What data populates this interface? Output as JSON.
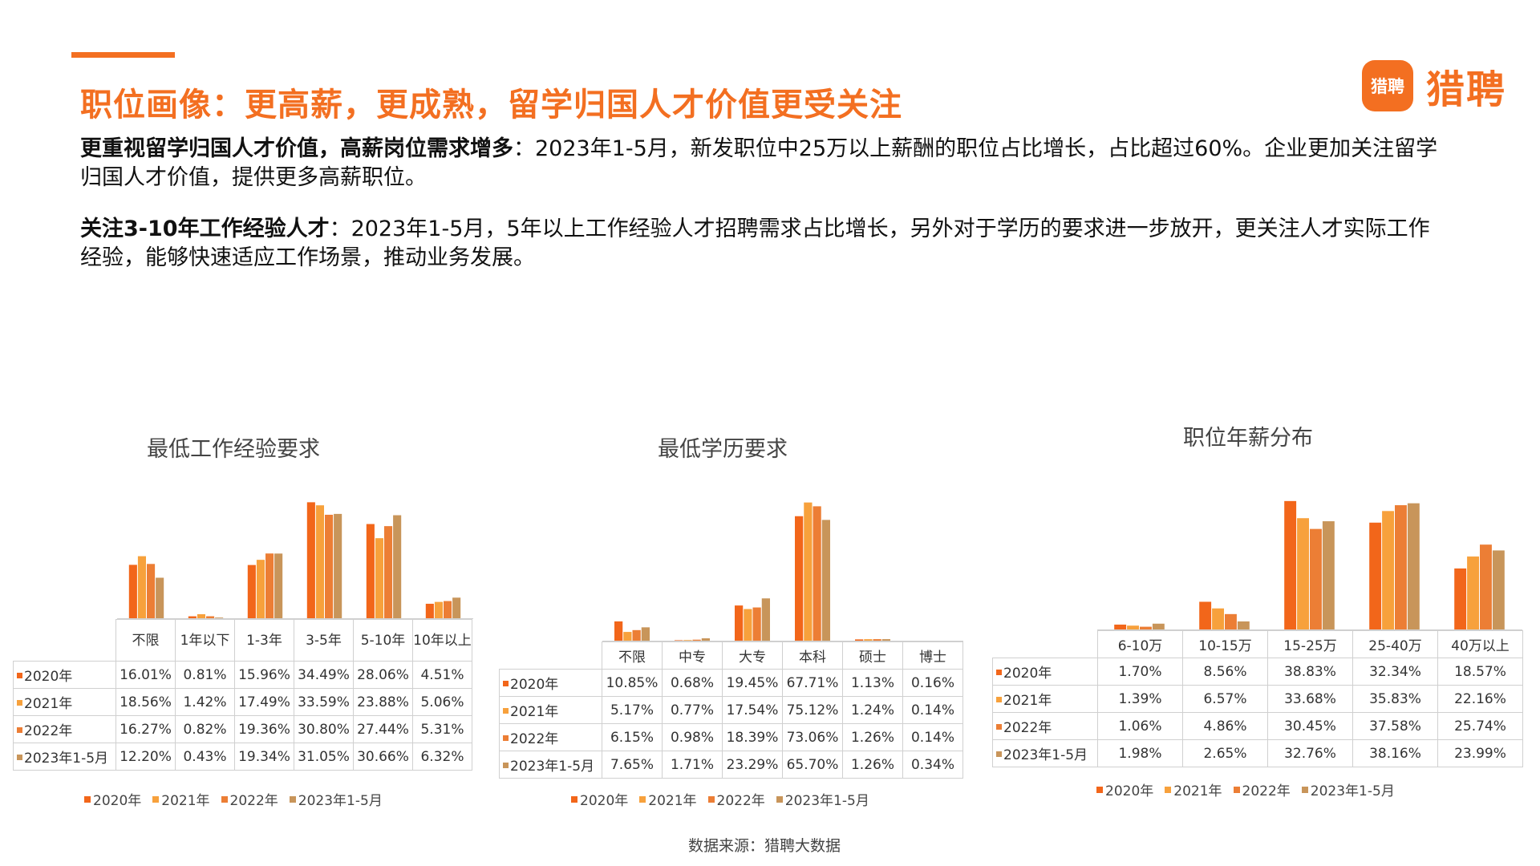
{
  "title": "职位画像：更高薪，更成熟，留学归国人才价值更受关注",
  "logo": {
    "badge_text": "猎聘",
    "text": "猎聘"
  },
  "paragraphs": [
    {
      "bold": "更重视留学归国人才价值，高薪岗位需求增多",
      "text": "：2023年1-5月，新发职位中25万以上薪酬的职位占比增长，占比超过60%。企业更加关注留学归国人才价值，提供更多高薪职位。"
    },
    {
      "bold": "关注3-10年工作经验人才",
      "text": "：2023年1-5月，5年以上工作经验人才招聘需求占比增长，另外对于学历的要求进一步放开，更关注人才实际工作经验，能够快速适应工作场景，推动业务发展。"
    }
  ],
  "source": "数据来源：猎聘大数据",
  "colors": {
    "accent": "#f36f21",
    "series": [
      "#f2661a",
      "#f7a13c",
      "#ec7e35",
      "#c8955a"
    ]
  },
  "chart_data": [
    {
      "type": "bar",
      "title": "最低工作经验要求",
      "categories": [
        "不限",
        "1年以下",
        "1-3年",
        "3-5年",
        "5-10年",
        "10年以上"
      ],
      "series": [
        {
          "name": "2020年",
          "values": [
            16.01,
            0.81,
            15.96,
            34.49,
            28.06,
            4.51
          ],
          "labels": [
            "16.01%",
            "0.81%",
            "15.96%",
            "34.49%",
            "28.06%",
            "4.51%"
          ]
        },
        {
          "name": "2021年",
          "values": [
            18.56,
            1.42,
            17.49,
            33.59,
            23.88,
            5.06
          ],
          "labels": [
            "18.56%",
            "1.42%",
            "17.49%",
            "33.59%",
            "23.88%",
            "5.06%"
          ]
        },
        {
          "name": "2022年",
          "values": [
            16.27,
            0.82,
            19.36,
            30.8,
            27.44,
            5.31
          ],
          "labels": [
            "16.27%",
            "0.82%",
            "19.36%",
            "30.80%",
            "27.44%",
            "5.31%"
          ]
        },
        {
          "name": "2023年1-5月",
          "values": [
            12.2,
            0.43,
            19.34,
            31.05,
            30.66,
            6.32
          ],
          "labels": [
            "12.20%",
            "0.43%",
            "19.34%",
            "31.05%",
            "30.66%",
            "6.32%"
          ]
        }
      ],
      "ylim": [
        0,
        36
      ],
      "grid": false,
      "legend": "bottom",
      "data_table": true
    },
    {
      "type": "bar",
      "title": "最低学历要求",
      "categories": [
        "不限",
        "中专",
        "大专",
        "本科",
        "硕士",
        "博士"
      ],
      "series": [
        {
          "name": "2020年",
          "values": [
            10.85,
            0.68,
            19.45,
            67.71,
            1.13,
            0.16
          ],
          "labels": [
            "10.85%",
            "0.68%",
            "19.45%",
            "67.71%",
            "1.13%",
            "0.16%"
          ]
        },
        {
          "name": "2021年",
          "values": [
            5.17,
            0.77,
            17.54,
            75.12,
            1.24,
            0.14
          ],
          "labels": [
            "5.17%",
            "0.77%",
            "17.54%",
            "75.12%",
            "1.24%",
            "0.14%"
          ]
        },
        {
          "name": "2022年",
          "values": [
            6.15,
            0.98,
            18.39,
            73.06,
            1.26,
            0.14
          ],
          "labels": [
            "6.15%",
            "0.98%",
            "18.39%",
            "73.06%",
            "1.26%",
            "0.14%"
          ]
        },
        {
          "name": "2023年1-5月",
          "values": [
            7.65,
            1.71,
            23.29,
            65.7,
            1.26,
            0.34
          ],
          "labels": [
            "7.65%",
            "1.71%",
            "23.29%",
            "65.70%",
            "1.26%",
            "0.34%"
          ]
        }
      ],
      "ylim": [
        0,
        78
      ],
      "grid": false,
      "legend": "bottom",
      "data_table": true
    },
    {
      "type": "bar",
      "title": "职位年薪分布",
      "categories": [
        "6-10万",
        "10-15万",
        "15-25万",
        "25-40万",
        "40万以上"
      ],
      "series": [
        {
          "name": "2020年",
          "values": [
            1.7,
            8.56,
            38.83,
            32.34,
            18.57
          ],
          "labels": [
            "1.70%",
            "8.56%",
            "38.83%",
            "32.34%",
            "18.57%"
          ]
        },
        {
          "name": "2021年",
          "values": [
            1.39,
            6.57,
            33.68,
            35.83,
            22.16
          ],
          "labels": [
            "1.39%",
            "6.57%",
            "33.68%",
            "35.83%",
            "22.16%"
          ]
        },
        {
          "name": "2022年",
          "values": [
            1.06,
            4.86,
            30.45,
            37.58,
            25.74
          ],
          "labels": [
            "1.06%",
            "4.86%",
            "30.45%",
            "37.58%",
            "25.74%"
          ]
        },
        {
          "name": "2023年1-5月",
          "values": [
            1.98,
            2.65,
            32.76,
            38.16,
            23.99
          ],
          "labels": [
            "1.98%",
            "2.65%",
            "32.76%",
            "38.16%",
            "23.99%"
          ]
        }
      ],
      "ylim": [
        0,
        40
      ],
      "grid": false,
      "legend": "bottom",
      "data_table": true
    }
  ]
}
